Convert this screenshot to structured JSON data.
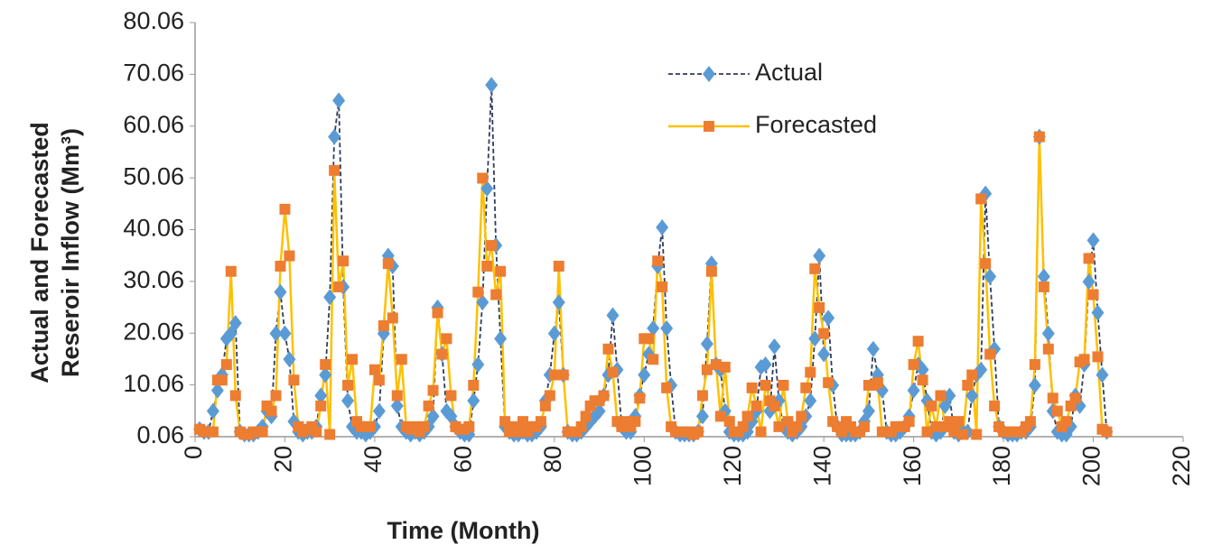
{
  "chart_data": {
    "type": "line",
    "xlabel": "Time (Month)",
    "ylabel": [
      "Actual and Forecasted",
      "Reseroir Inflow (Mm³)"
    ],
    "xlim": [
      0,
      220
    ],
    "xticks": [
      0,
      20,
      40,
      60,
      80,
      100,
      120,
      140,
      160,
      180,
      200,
      220
    ],
    "ylim": [
      0.06,
      80.06
    ],
    "yticks": [
      0.06,
      10.06,
      20.06,
      30.06,
      40.06,
      50.06,
      60.06,
      70.06,
      80.06
    ],
    "legend": "top-center",
    "x": [
      1,
      2,
      3,
      4,
      5,
      6,
      7,
      8,
      9,
      10,
      11,
      12,
      13,
      14,
      15,
      16,
      17,
      18,
      19,
      20,
      21,
      22,
      23,
      24,
      25,
      26,
      27,
      28,
      29,
      30,
      31,
      32,
      33,
      34,
      35,
      36,
      37,
      38,
      39,
      40,
      41,
      42,
      43,
      44,
      45,
      46,
      47,
      48,
      49,
      50,
      51,
      52,
      53,
      54,
      55,
      56,
      57,
      58,
      59,
      60,
      61,
      62,
      63,
      64,
      65,
      66,
      67,
      68,
      69,
      70,
      71,
      72,
      73,
      74,
      75,
      76,
      77,
      78,
      79,
      80,
      81,
      82,
      83,
      84,
      85,
      86,
      87,
      88,
      89,
      90,
      91,
      92,
      93,
      94,
      95,
      96,
      97,
      98,
      99,
      100,
      101,
      102,
      103,
      104,
      105,
      106,
      107,
      108,
      109,
      110,
      111,
      112,
      113,
      114,
      115,
      116,
      117,
      118,
      119,
      120,
      121,
      122,
      123,
      124,
      125,
      126,
      127,
      128,
      129,
      130,
      131,
      132,
      133,
      134,
      135,
      136,
      137,
      138,
      139,
      140,
      141,
      142,
      143,
      144,
      145,
      146,
      147,
      148,
      149,
      150,
      151,
      152,
      153,
      154,
      155,
      156,
      157,
      158,
      159,
      160,
      161,
      162,
      163,
      164,
      165,
      166,
      167,
      168,
      169,
      170,
      171,
      172,
      173,
      174,
      175,
      176,
      177,
      178,
      179,
      180,
      181,
      182,
      183,
      184,
      185,
      186,
      187,
      188,
      189,
      190,
      191,
      192,
      193,
      194,
      195,
      196,
      197,
      198,
      199,
      200,
      201,
      202,
      203
    ],
    "series": [
      {
        "name": "Actual",
        "color": "#5b9bd5",
        "line_color": "#2e3d5c",
        "dash": true,
        "marker": "diamond",
        "values": [
          1.5,
          1,
          1,
          5,
          9,
          12,
          19,
          20,
          22,
          1,
          0.5,
          0.5,
          0.5,
          1,
          2,
          5,
          4,
          20,
          28,
          20,
          15,
          3,
          1,
          0.5,
          1,
          1,
          2,
          8,
          12,
          27,
          58,
          65,
          29,
          7,
          2,
          1,
          1,
          0.5,
          1,
          2,
          5,
          20,
          35,
          33,
          6,
          2,
          1,
          0.5,
          1,
          0.5,
          1,
          2,
          4,
          25,
          16,
          5,
          4,
          2,
          1,
          0.5,
          0.5,
          7,
          14,
          26,
          48,
          68,
          37,
          19,
          2,
          1,
          0.5,
          0.5,
          1,
          0.5,
          0.5,
          1,
          2,
          7,
          12,
          20,
          26,
          12,
          1,
          0.5,
          0.5,
          1,
          2,
          3,
          4,
          5,
          8,
          12,
          23.5,
          13,
          2,
          1,
          1,
          4,
          8,
          12,
          16,
          21,
          33,
          40.5,
          21,
          10,
          1,
          0.5,
          0.5,
          0.5,
          0.5,
          1,
          4,
          18,
          33.5,
          14,
          13,
          5,
          1,
          0.5,
          0.5,
          0.5,
          1,
          3,
          5,
          13.5,
          14,
          5,
          17.5,
          7,
          2,
          1,
          0.5,
          1,
          2,
          4,
          7,
          19,
          35,
          16,
          23,
          10,
          2,
          0.5,
          0.5,
          0.5,
          0.5,
          1,
          3,
          5,
          17,
          12,
          9,
          1,
          0.5,
          0.5,
          1,
          2,
          4,
          9,
          14,
          13,
          7,
          1,
          0.5,
          1,
          6,
          8,
          1,
          0.5,
          1,
          1,
          8,
          12,
          13,
          47,
          31,
          17,
          2,
          1,
          0.5,
          0.5,
          0.5,
          1,
          1,
          2,
          10,
          58,
          31,
          20,
          5,
          1,
          0.5,
          0.5,
          2,
          8,
          6,
          14,
          30,
          38,
          24,
          12,
          1
        ]
      },
      {
        "name": "Forecasted",
        "color": "#ed7d31",
        "line_color": "#ffc000",
        "dash": false,
        "marker": "square",
        "values": [
          1.5,
          1,
          1,
          1,
          11,
          11,
          14,
          32,
          8,
          1,
          0.5,
          0.5,
          1,
          1,
          1,
          6,
          5,
          8,
          33,
          44,
          35,
          11,
          2,
          1,
          1.5,
          2,
          1,
          6,
          14,
          0.5,
          51.5,
          29,
          34,
          10,
          15,
          3,
          2,
          2,
          2,
          13,
          11,
          21.5,
          33.5,
          23,
          8,
          15,
          2,
          1.5,
          2,
          1,
          2,
          6,
          9,
          24,
          16,
          19,
          8,
          2,
          1.5,
          1.5,
          2,
          10,
          28,
          50,
          33,
          37,
          27.5,
          32,
          3,
          1,
          2,
          1,
          3,
          1,
          2,
          2,
          3,
          6,
          8,
          12,
          33,
          12,
          1,
          1,
          1,
          2,
          4,
          6,
          7,
          7,
          8,
          17,
          12.5,
          3,
          2,
          3,
          2,
          3,
          7.5,
          19,
          19,
          15,
          34,
          29,
          9.5,
          2,
          1,
          1,
          1,
          1,
          0.5,
          1,
          8,
          13,
          32,
          14,
          4,
          13.5,
          3,
          1,
          1,
          2,
          4,
          9.5,
          6,
          1,
          10,
          7,
          6,
          2,
          10,
          3,
          1,
          2,
          4,
          9.5,
          12.5,
          32.5,
          25,
          20,
          10.5,
          3,
          2,
          1,
          3,
          2,
          1,
          1,
          2,
          10,
          10,
          10.5,
          1,
          1,
          1,
          2,
          2,
          2,
          3,
          14,
          18.5,
          11,
          1,
          6,
          2,
          8,
          2,
          3,
          1,
          3,
          0.5,
          10,
          12,
          0.5,
          46,
          33.5,
          16,
          6,
          2,
          1,
          1,
          1,
          1,
          1,
          2,
          3,
          14,
          58,
          29,
          17,
          7.5,
          5,
          2,
          3,
          6,
          7.5,
          14.5,
          15,
          34.5,
          27.5,
          15.5,
          1.5,
          1
        ]
      }
    ]
  }
}
